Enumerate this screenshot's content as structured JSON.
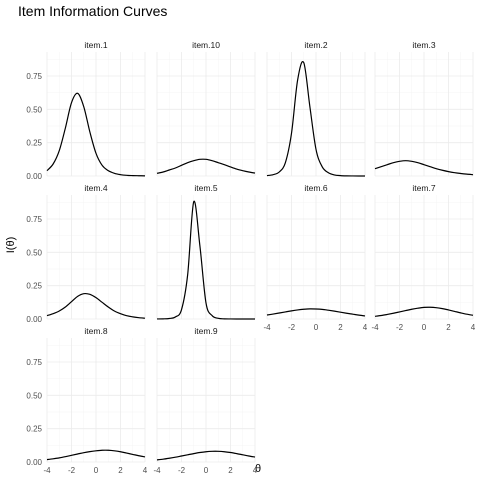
{
  "chart_data": {
    "type": "line",
    "title": "Item Information Curves",
    "xlabel": "θ",
    "ylabel": "I(θ)",
    "xlim": [
      -4,
      4
    ],
    "ylim": [
      0,
      0.93
    ],
    "x_ticks": [
      -4,
      -2,
      0,
      2,
      4
    ],
    "x_tick_labels": [
      "-4",
      "-2",
      "0",
      "2",
      "4"
    ],
    "y_ticks": [
      0,
      0.25,
      0.5,
      0.75
    ],
    "y_tick_labels": [
      "0.00",
      "0.25",
      "0.50",
      "0.75"
    ],
    "grid": true,
    "facets": [
      {
        "name": "item.1",
        "x": [
          -4,
          -3.5,
          -3,
          -2.5,
          -2,
          -1.5,
          -1,
          -0.5,
          0,
          0.5,
          1,
          1.5,
          2,
          2.5,
          3,
          3.5,
          4
        ],
        "y": [
          0.04,
          0.09,
          0.19,
          0.36,
          0.55,
          0.62,
          0.52,
          0.33,
          0.17,
          0.08,
          0.04,
          0.02,
          0.01,
          0.005,
          0.003,
          0.002,
          0.001
        ]
      },
      {
        "name": "item.10",
        "x": [
          -4,
          -3.5,
          -3,
          -2.5,
          -2,
          -1.5,
          -1,
          -0.5,
          0,
          0.5,
          1,
          1.5,
          2,
          2.5,
          3,
          3.5,
          4
        ],
        "y": [
          0.02,
          0.03,
          0.045,
          0.06,
          0.08,
          0.1,
          0.115,
          0.125,
          0.125,
          0.115,
          0.1,
          0.085,
          0.068,
          0.052,
          0.04,
          0.03,
          0.022
        ]
      },
      {
        "name": "item.2",
        "x": [
          -4,
          -3.5,
          -3,
          -2.5,
          -2,
          -1.5,
          -1,
          -0.5,
          0,
          0.5,
          1,
          1.5,
          2,
          2.5,
          3,
          3.5,
          4
        ],
        "y": [
          0.003,
          0.01,
          0.03,
          0.1,
          0.32,
          0.72,
          0.85,
          0.52,
          0.2,
          0.07,
          0.025,
          0.008,
          0.003,
          0.001,
          0.0005,
          0.0002,
          0.0001
        ]
      },
      {
        "name": "item.3",
        "x": [
          -4,
          -3.5,
          -3,
          -2.5,
          -2,
          -1.5,
          -1,
          -0.5,
          0,
          0.5,
          1,
          1.5,
          2,
          2.5,
          3,
          3.5,
          4
        ],
        "y": [
          0.055,
          0.07,
          0.085,
          0.1,
          0.11,
          0.115,
          0.11,
          0.1,
          0.085,
          0.07,
          0.055,
          0.043,
          0.033,
          0.025,
          0.019,
          0.014,
          0.01
        ]
      },
      {
        "name": "item.4",
        "x": [
          -4,
          -3.5,
          -3,
          -2.5,
          -2,
          -1.5,
          -1,
          -0.5,
          0,
          0.5,
          1,
          1.5,
          2,
          2.5,
          3,
          3.5,
          4
        ],
        "y": [
          0.025,
          0.04,
          0.06,
          0.09,
          0.13,
          0.17,
          0.19,
          0.185,
          0.16,
          0.125,
          0.09,
          0.06,
          0.04,
          0.025,
          0.016,
          0.01,
          0.006
        ]
      },
      {
        "name": "item.5",
        "x": [
          -4,
          -3.5,
          -3,
          -2.5,
          -2,
          -1.5,
          -1,
          -0.5,
          0,
          0.5,
          1,
          1.5,
          2,
          2.5,
          3,
          3.5,
          4
        ],
        "y": [
          0.0005,
          0.001,
          0.004,
          0.015,
          0.07,
          0.33,
          0.88,
          0.55,
          0.12,
          0.025,
          0.005,
          0.001,
          0.0003,
          0.0001,
          0,
          0,
          0
        ]
      },
      {
        "name": "item.6",
        "x": [
          -4,
          -3.5,
          -3,
          -2.5,
          -2,
          -1.5,
          -1,
          -0.5,
          0,
          0.5,
          1,
          1.5,
          2,
          2.5,
          3,
          3.5,
          4
        ],
        "y": [
          0.03,
          0.037,
          0.045,
          0.053,
          0.061,
          0.068,
          0.073,
          0.076,
          0.075,
          0.072,
          0.066,
          0.059,
          0.051,
          0.043,
          0.036,
          0.029,
          0.023
        ]
      },
      {
        "name": "item.7",
        "x": [
          -4,
          -3.5,
          -3,
          -2.5,
          -2,
          -1.5,
          -1,
          -0.5,
          0,
          0.5,
          1,
          1.5,
          2,
          2.5,
          3,
          3.5,
          4
        ],
        "y": [
          0.02,
          0.026,
          0.034,
          0.043,
          0.053,
          0.063,
          0.073,
          0.081,
          0.087,
          0.088,
          0.085,
          0.078,
          0.068,
          0.057,
          0.046,
          0.036,
          0.028
        ]
      },
      {
        "name": "item.8",
        "x": [
          -4,
          -3.5,
          -3,
          -2.5,
          -2,
          -1.5,
          -1,
          -0.5,
          0,
          0.5,
          1,
          1.5,
          2,
          2.5,
          3,
          3.5,
          4
        ],
        "y": [
          0.018,
          0.024,
          0.031,
          0.04,
          0.05,
          0.06,
          0.07,
          0.078,
          0.084,
          0.088,
          0.088,
          0.084,
          0.077,
          0.067,
          0.057,
          0.047,
          0.038
        ]
      },
      {
        "name": "item.9",
        "x": [
          -4,
          -3.5,
          -3,
          -2.5,
          -2,
          -1.5,
          -1,
          -0.5,
          0,
          0.5,
          1,
          1.5,
          2,
          2.5,
          3,
          3.5,
          4
        ],
        "y": [
          0.016,
          0.021,
          0.028,
          0.036,
          0.045,
          0.054,
          0.063,
          0.071,
          0.077,
          0.08,
          0.08,
          0.077,
          0.071,
          0.063,
          0.054,
          0.045,
          0.037
        ]
      }
    ]
  }
}
